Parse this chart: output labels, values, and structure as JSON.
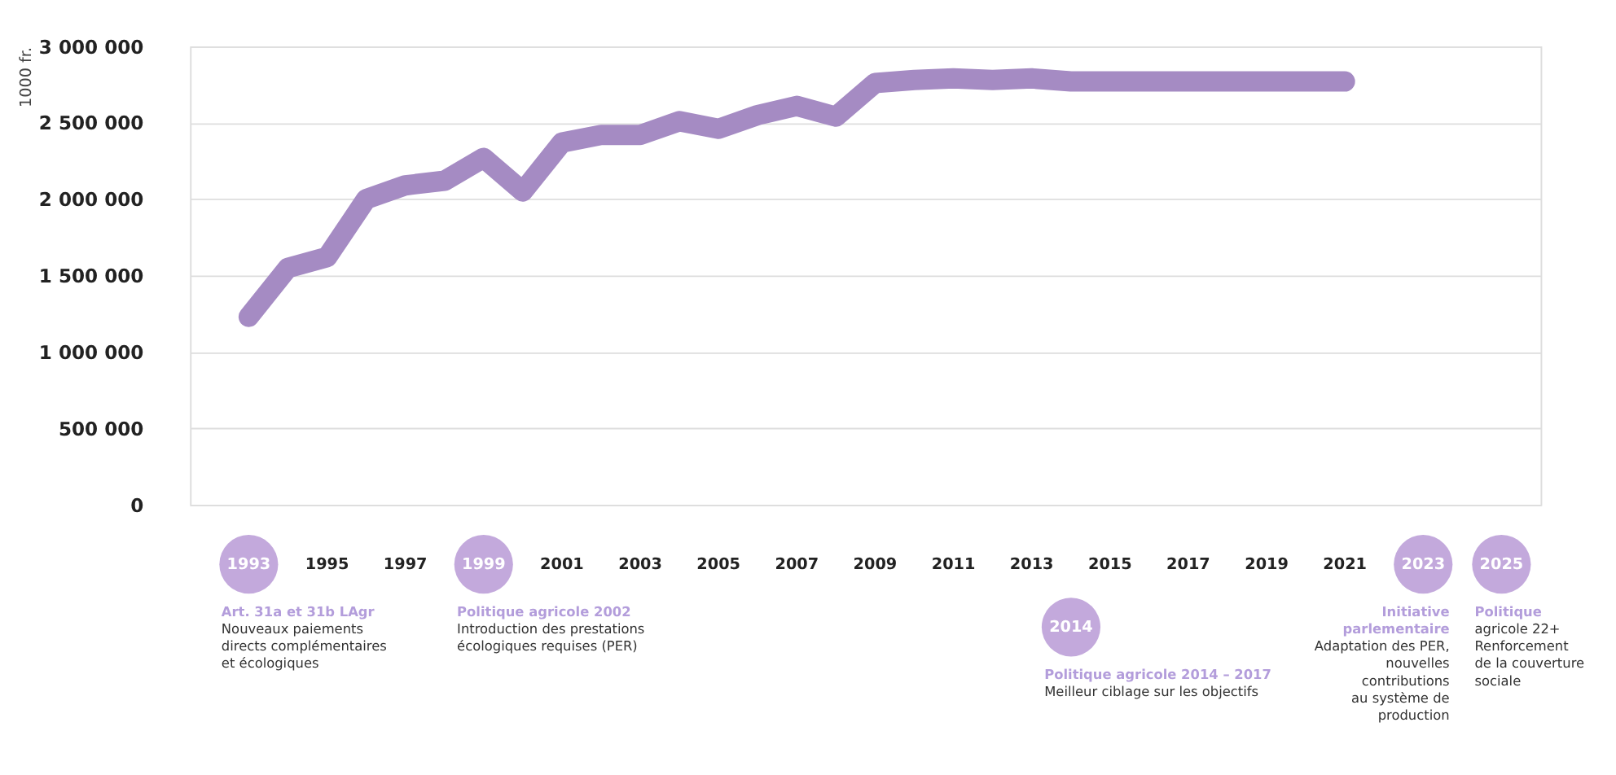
{
  "chart_data": {
    "type": "line",
    "ylabel": "1000 fr.",
    "x": [
      1993,
      1994,
      1995,
      1996,
      1997,
      1998,
      1999,
      2000,
      2001,
      2002,
      2003,
      2004,
      2005,
      2006,
      2007,
      2008,
      2009,
      2010,
      2011,
      2012,
      2013,
      2014,
      2015,
      2016,
      2017,
      2018,
      2019,
      2020,
      2021
    ],
    "series": [
      {
        "color": "#a58bc3",
        "values": [
          1230000,
          1550000,
          1620000,
          2000000,
          2090000,
          2120000,
          2270000,
          2050000,
          2370000,
          2420000,
          2420000,
          2510000,
          2460000,
          2550000,
          2610000,
          2540000,
          2760000,
          2780000,
          2790000,
          2780000,
          2790000,
          2770000,
          2770000,
          2770000,
          2770000,
          2770000,
          2770000,
          2770000,
          2770000
        ]
      }
    ],
    "xlim": [
      1991.5,
      2026
    ],
    "xticks": [
      1993,
      1995,
      1997,
      1999,
      2001,
      2003,
      2005,
      2007,
      2009,
      2011,
      2013,
      2015,
      2017,
      2019,
      2021,
      2023,
      2025
    ],
    "ylim": [
      0,
      3000000
    ],
    "yticks": [
      {
        "value": 0,
        "label": "0"
      },
      {
        "value": 500000,
        "label": "500 000"
      },
      {
        "value": 1000000,
        "label": "1 000 000"
      },
      {
        "value": 1500000,
        "label": "1 500 000"
      },
      {
        "value": 2000000,
        "label": "2 000 000"
      },
      {
        "value": 2500000,
        "label": "2 500 000"
      },
      {
        "value": 3000000,
        "label": "3 000 000"
      }
    ],
    "grid": "y",
    "marker": "none",
    "line_style": "solid",
    "annotations": [
      "Art. 31a et 31b LAgr\nNouveaux paiements\ndirects complémentaires\net écologiques",
      "Politique agricole 2002\nIntroduction des prestations\nécologiques requises (PER)",
      "2014",
      "Politique agricole 2014 – 2017\nMeilleur ciblage sur les objectifs",
      "Initiative\nparlementaire\nAdaptation des PER,\nnouvelles\ncontributions\nau système de\nproduction",
      "Politique\nagricole 22+\nRenforcement\nde la couverture\nsociale"
    ]
  }
}
